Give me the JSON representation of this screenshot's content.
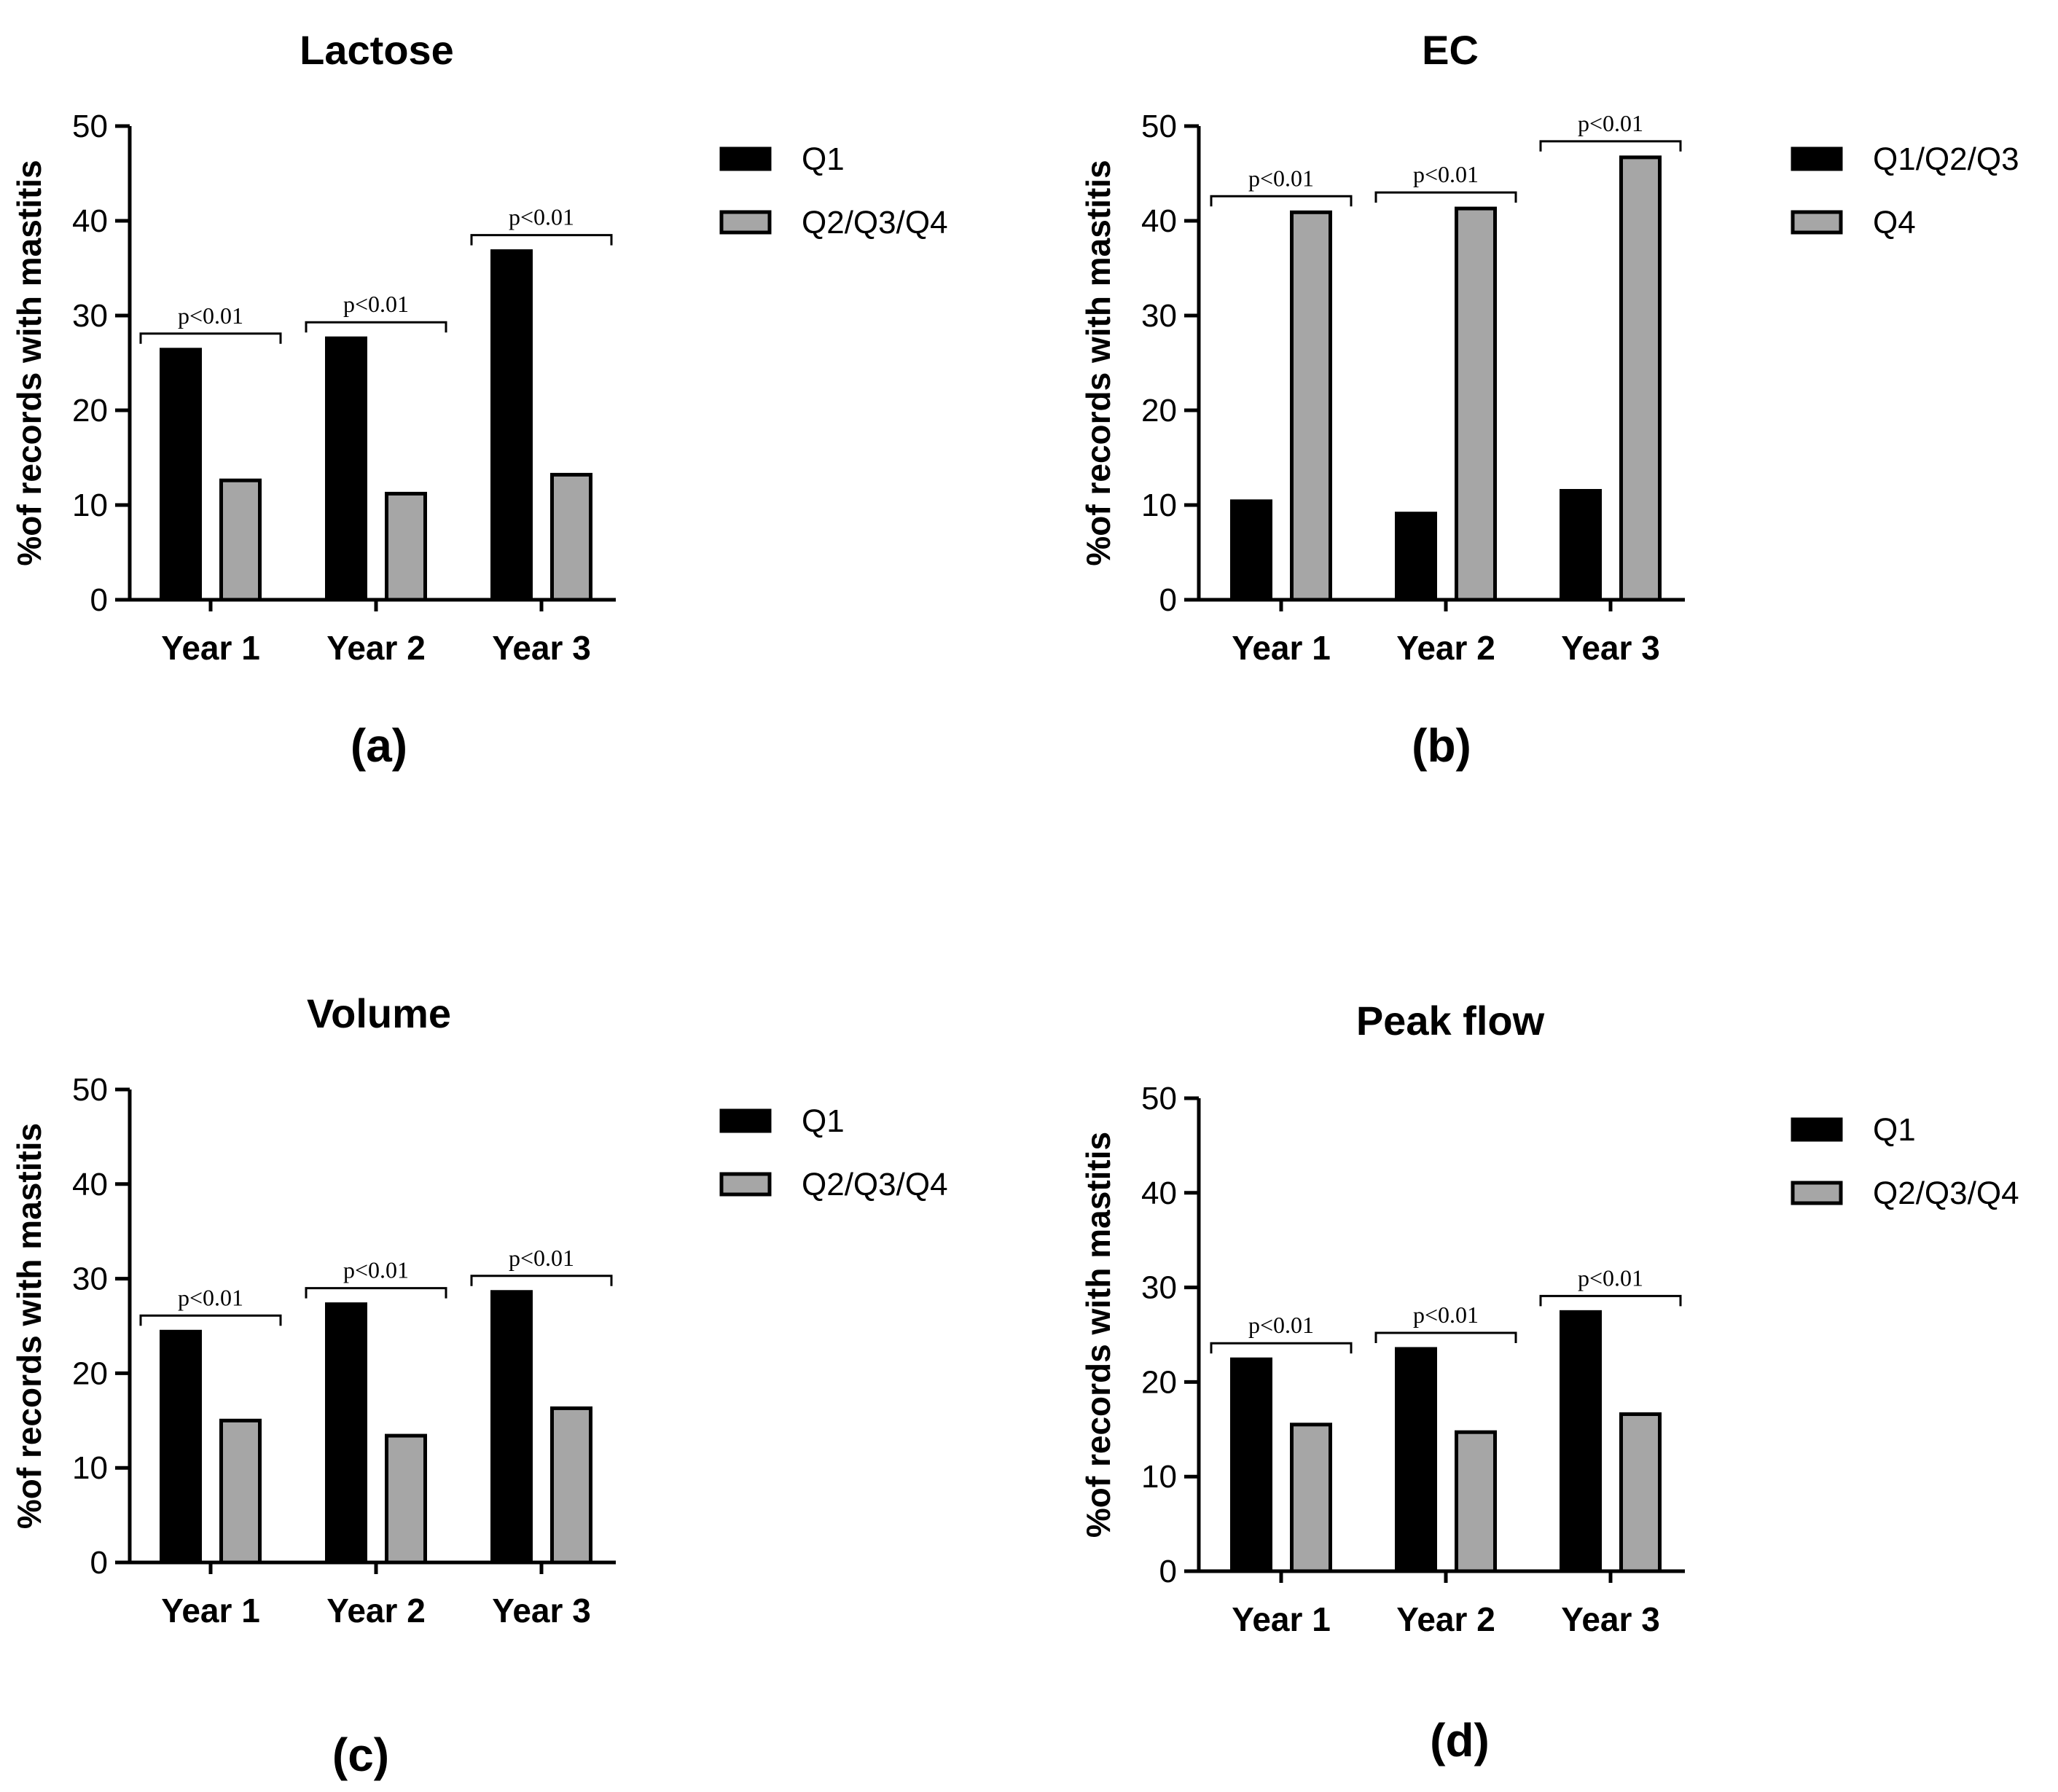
{
  "chart_data": [
    {
      "type": "bar",
      "title": "Lactose",
      "caption": "(a)",
      "ylabel": "%of records with mastitis",
      "xlabel": "",
      "ylim": [
        0,
        50
      ],
      "yticks": [
        "0",
        "10",
        "20",
        "30",
        "40",
        "50"
      ],
      "categories": [
        "Year 1",
        "Year 2",
        "Year 3"
      ],
      "series": [
        {
          "name": "Q1",
          "color": "#000000",
          "values": [
            26.4,
            27.6,
            36.8
          ]
        },
        {
          "name": "Q2/Q3/Q4",
          "color": "#a6a6a6",
          "values": [
            12.6,
            11.2,
            13.2
          ]
        }
      ],
      "annotations": [
        "p<0.01",
        "p<0.01",
        "p<0.01"
      ],
      "legend_position": "right"
    },
    {
      "type": "bar",
      "title": "EC",
      "caption": "(b)",
      "ylabel": "%of records with mastitis",
      "xlabel": "",
      "ylim": [
        0,
        50
      ],
      "yticks": [
        "0",
        "10",
        "20",
        "30",
        "40",
        "50"
      ],
      "categories": [
        "Year 1",
        "Year 2",
        "Year 3"
      ],
      "series": [
        {
          "name": "Q1/Q2/Q3",
          "color": "#000000",
          "values": [
            10.4,
            9.1,
            11.5
          ]
        },
        {
          "name": "Q4",
          "color": "#a6a6a6",
          "values": [
            40.9,
            41.3,
            46.7
          ]
        }
      ],
      "annotations": [
        "p<0.01",
        "p<0.01",
        "p<0.01"
      ],
      "legend_position": "right"
    },
    {
      "type": "bar",
      "title": "Volume",
      "caption": "(c)",
      "ylabel": "%of records with mastitis",
      "xlabel": "",
      "ylim": [
        0,
        50
      ],
      "yticks": [
        "0",
        "10",
        "20",
        "30",
        "40",
        "50"
      ],
      "categories": [
        "Year 1",
        "Year 2",
        "Year 3"
      ],
      "series": [
        {
          "name": "Q1",
          "color": "#000000",
          "values": [
            24.4,
            27.3,
            28.6
          ]
        },
        {
          "name": "Q2/Q3/Q4",
          "color": "#a6a6a6",
          "values": [
            15.0,
            13.4,
            16.3
          ]
        }
      ],
      "annotations": [
        "p<0.01",
        "p<0.01",
        "p<0.01"
      ],
      "legend_position": "right"
    },
    {
      "type": "bar",
      "title": "Peak flow",
      "caption": "(d)",
      "ylabel": "%of records with mastitis",
      "xlabel": "",
      "ylim": [
        0,
        50
      ],
      "yticks": [
        "0",
        "10",
        "20",
        "30",
        "40",
        "50"
      ],
      "categories": [
        "Year 1",
        "Year 2",
        "Year 3"
      ],
      "series": [
        {
          "name": "Q1",
          "color": "#000000",
          "values": [
            22.4,
            23.5,
            27.4
          ]
        },
        {
          "name": "Q2/Q3/Q4",
          "color": "#a6a6a6",
          "values": [
            15.5,
            14.7,
            16.6
          ]
        }
      ],
      "annotations": [
        "p<0.01",
        "p<0.01",
        "p<0.01"
      ],
      "legend_position": "right"
    }
  ]
}
